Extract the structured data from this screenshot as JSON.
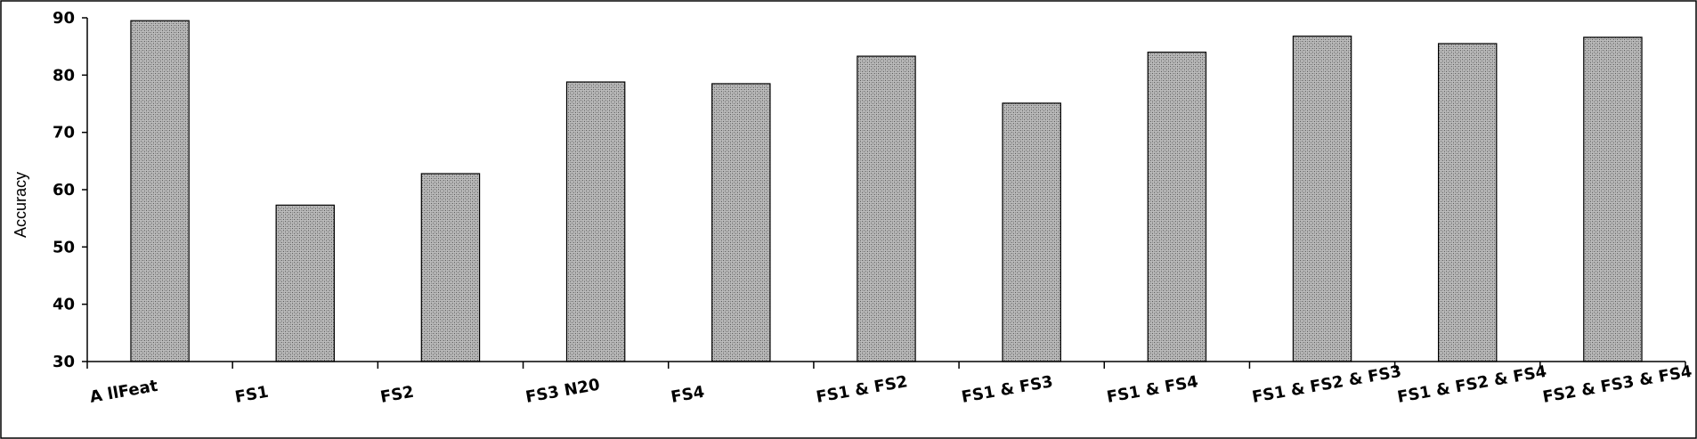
{
  "chart_data": {
    "type": "bar",
    "categories": [
      "A llFeat",
      "FS1",
      "FS2",
      "FS3 N20",
      "FS4",
      "FS1 & FS2",
      "FS1 & FS3",
      "FS1 & FS4",
      "FS1 & FS2 & FS3",
      "FS1 & FS2 & FS4",
      "FS2 & FS3 & FS4"
    ],
    "series": [
      {
        "values": [
          89.5,
          57.3,
          62.8,
          78.8,
          78.5,
          83.3,
          75.1,
          84.0,
          86.8,
          85.5,
          86.6
        ]
      }
    ],
    "title": "",
    "xlabel": "",
    "ylabel": "Accuracy",
    "ylim": [
      30,
      90
    ],
    "yticks": [
      "30",
      "40",
      "50",
      "60",
      "70",
      "80",
      "90"
    ],
    "grid": false,
    "legend": "none",
    "bar_color": "#a8a8a8"
  }
}
